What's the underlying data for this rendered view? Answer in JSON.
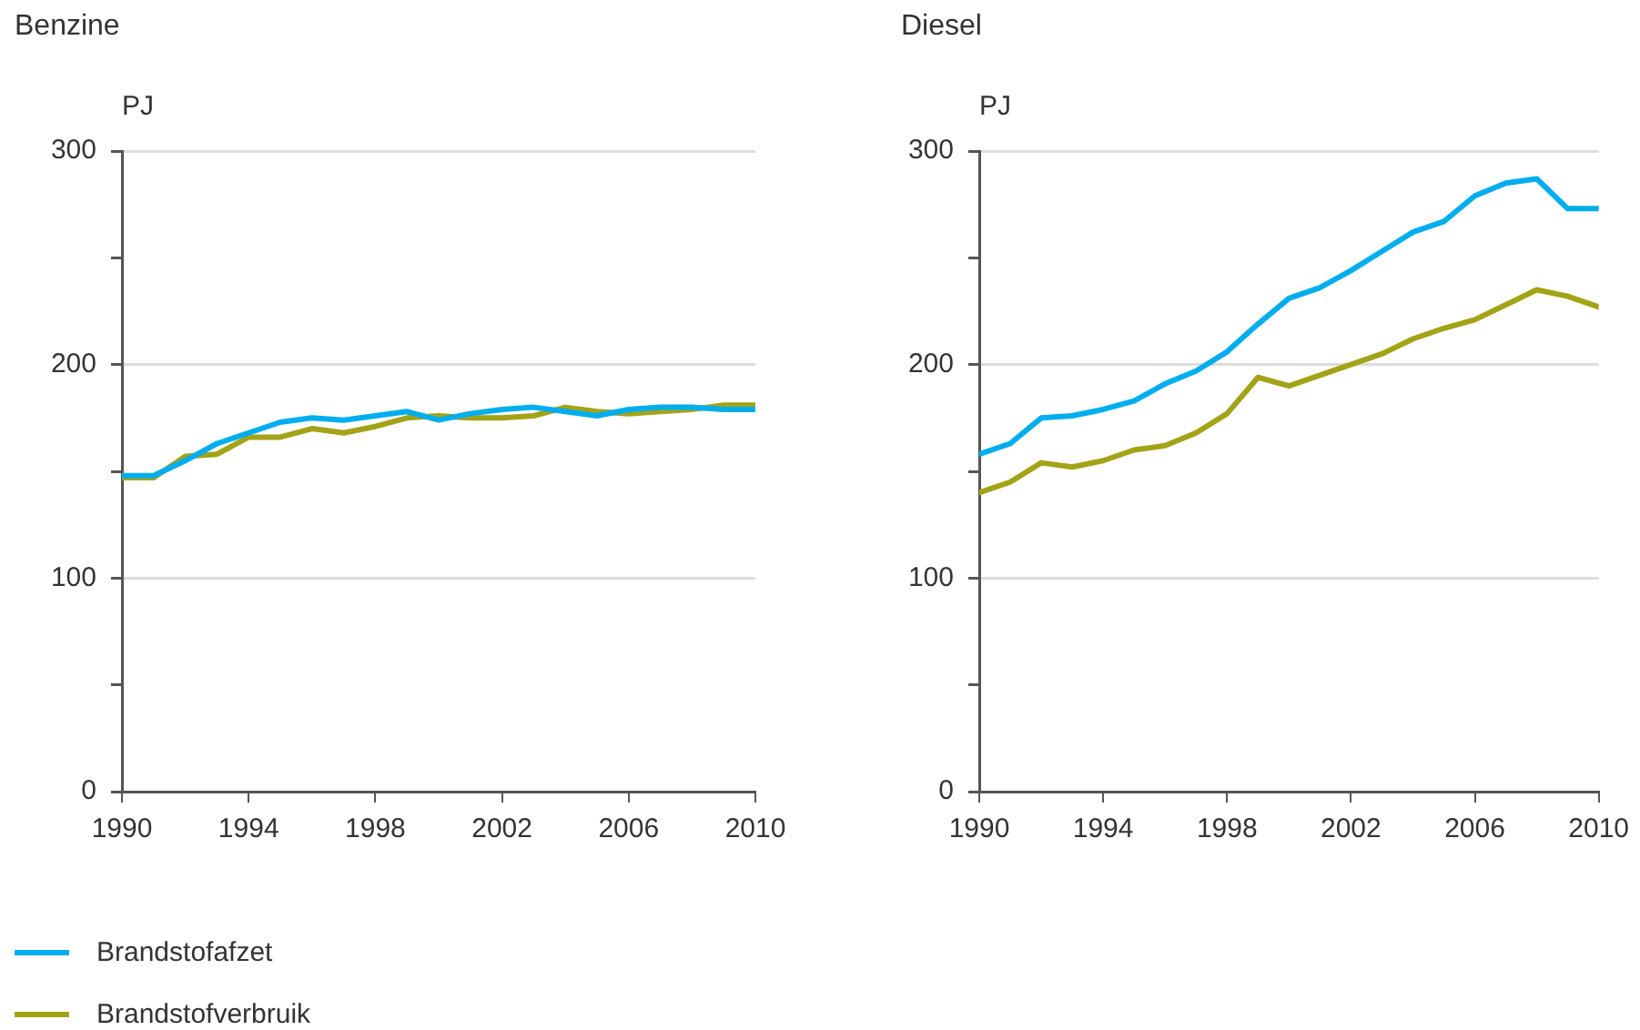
{
  "chart_data": [
    {
      "type": "line",
      "title": "Benzine",
      "ylabel": "PJ",
      "x": [
        1990,
        1991,
        1992,
        1993,
        1994,
        1995,
        1996,
        1997,
        1998,
        1999,
        2000,
        2001,
        2002,
        2003,
        2004,
        2005,
        2006,
        2007,
        2008,
        2009,
        2010
      ],
      "xlim": [
        1990,
        2010
      ],
      "xticks": [
        1990,
        1994,
        1998,
        2002,
        2006,
        2010
      ],
      "ylim": [
        0,
        300
      ],
      "yticks": [
        0,
        {
          "value": 50,
          "label": null
        },
        100,
        {
          "value": 150,
          "label": null
        },
        200,
        {
          "value": 250,
          "label": null
        },
        300
      ],
      "grid": "y",
      "legend": "bottom",
      "marker": "none",
      "line_style": "solid",
      "series": [
        {
          "name": "Brandstofafzet",
          "color": "#00aeef",
          "values": [
            148,
            148,
            155,
            163,
            168,
            173,
            175,
            174,
            176,
            178,
            174,
            177,
            179,
            180,
            178,
            176,
            179,
            180,
            180,
            179,
            179
          ]
        },
        {
          "name": "Brandstofverbruik",
          "color": "#a3a317",
          "values": [
            147,
            147,
            157,
            158,
            166,
            166,
            170,
            168,
            171,
            175,
            176,
            175,
            175,
            176,
            180,
            178,
            177,
            178,
            179,
            181,
            181
          ]
        }
      ]
    },
    {
      "type": "line",
      "title": "Diesel",
      "ylabel": "PJ",
      "x": [
        1990,
        1991,
        1992,
        1993,
        1994,
        1995,
        1996,
        1997,
        1998,
        1999,
        2000,
        2001,
        2002,
        2003,
        2004,
        2005,
        2006,
        2007,
        2008,
        2009,
        2010
      ],
      "xlim": [
        1990,
        2010
      ],
      "xticks": [
        1990,
        1994,
        1998,
        2002,
        2006,
        2010
      ],
      "ylim": [
        0,
        300
      ],
      "yticks": [
        0,
        {
          "value": 50,
          "label": null
        },
        100,
        {
          "value": 150,
          "label": null
        },
        200,
        {
          "value": 250,
          "label": null
        },
        300
      ],
      "grid": "y",
      "marker": "none",
      "line_style": "solid",
      "series": [
        {
          "color": "#00aeef",
          "values": [
            158,
            163,
            175,
            176,
            179,
            183,
            191,
            197,
            206,
            219,
            231,
            236,
            244,
            253,
            262,
            267,
            279,
            285,
            287,
            273,
            273
          ]
        },
        {
          "color": "#a3a317",
          "values": [
            140,
            145,
            154,
            152,
            155,
            160,
            162,
            168,
            177,
            194,
            190,
            195,
            200,
            205,
            212,
            217,
            221,
            228,
            235,
            232,
            227
          ]
        }
      ]
    }
  ]
}
